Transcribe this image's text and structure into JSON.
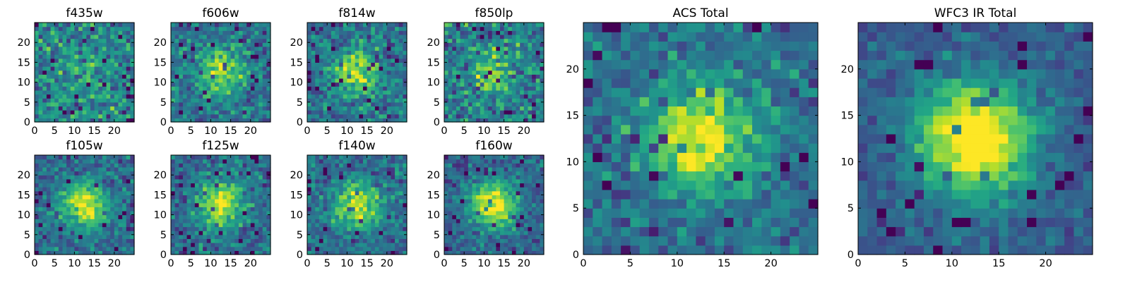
{
  "figure": {
    "description_colormap": "viridis"
  },
  "chart_data": [
    {
      "type": "heatmap",
      "title": "f435w",
      "xlim": [
        0,
        25
      ],
      "ylim": [
        0,
        25
      ],
      "xticks": [
        0,
        5,
        10,
        15,
        20
      ],
      "yticks": [
        0,
        5,
        10,
        15,
        20
      ],
      "grid_size": 25,
      "source_center": [
        12,
        12
      ],
      "signal_strength": 0.15,
      "noise_level": 0.55
    },
    {
      "type": "heatmap",
      "title": "f606w",
      "xlim": [
        0,
        25
      ],
      "ylim": [
        0,
        25
      ],
      "xticks": [
        0,
        5,
        10,
        15,
        20
      ],
      "yticks": [
        0,
        5,
        10,
        15,
        20
      ],
      "grid_size": 25,
      "source_center": [
        12,
        12
      ],
      "signal_strength": 0.45,
      "noise_level": 0.45
    },
    {
      "type": "heatmap",
      "title": "f814w",
      "xlim": [
        0,
        25
      ],
      "ylim": [
        0,
        25
      ],
      "xticks": [
        0,
        5,
        10,
        15,
        20
      ],
      "yticks": [
        0,
        5,
        10,
        15,
        20
      ],
      "grid_size": 25,
      "source_center": [
        12,
        12
      ],
      "signal_strength": 0.5,
      "noise_level": 0.45
    },
    {
      "type": "heatmap",
      "title": "f850lp",
      "xlim": [
        0,
        25
      ],
      "ylim": [
        0,
        25
      ],
      "xticks": [
        0,
        5,
        10,
        15,
        20
      ],
      "yticks": [
        0,
        5,
        10,
        15,
        20
      ],
      "grid_size": 25,
      "source_center": [
        12,
        12
      ],
      "signal_strength": 0.35,
      "noise_level": 0.55
    },
    {
      "type": "heatmap",
      "title": "f105w",
      "xlim": [
        0,
        25
      ],
      "ylim": [
        0,
        25
      ],
      "xticks": [
        0,
        5,
        10,
        15,
        20
      ],
      "yticks": [
        0,
        5,
        10,
        15,
        20
      ],
      "grid_size": 25,
      "source_center": [
        12,
        12
      ],
      "signal_strength": 0.6,
      "noise_level": 0.4
    },
    {
      "type": "heatmap",
      "title": "f125w",
      "xlim": [
        0,
        25
      ],
      "ylim": [
        0,
        25
      ],
      "xticks": [
        0,
        5,
        10,
        15,
        20
      ],
      "yticks": [
        0,
        5,
        10,
        15,
        20
      ],
      "grid_size": 25,
      "source_center": [
        12,
        12
      ],
      "signal_strength": 0.6,
      "noise_level": 0.4
    },
    {
      "type": "heatmap",
      "title": "f140w",
      "xlim": [
        0,
        25
      ],
      "ylim": [
        0,
        25
      ],
      "xticks": [
        0,
        5,
        10,
        15,
        20
      ],
      "yticks": [
        0,
        5,
        10,
        15,
        20
      ],
      "grid_size": 25,
      "source_center": [
        12,
        12
      ],
      "signal_strength": 0.55,
      "noise_level": 0.4
    },
    {
      "type": "heatmap",
      "title": "f160w",
      "xlim": [
        0,
        25
      ],
      "ylim": [
        0,
        25
      ],
      "xticks": [
        0,
        5,
        10,
        15,
        20
      ],
      "yticks": [
        0,
        5,
        10,
        15,
        20
      ],
      "grid_size": 25,
      "source_center": [
        12,
        12
      ],
      "signal_strength": 0.7,
      "noise_level": 0.35
    },
    {
      "type": "heatmap",
      "title": "ACS Total",
      "xlim": [
        0,
        25
      ],
      "ylim": [
        0,
        25
      ],
      "xticks": [
        0,
        5,
        10,
        15,
        20
      ],
      "yticks": [
        0,
        5,
        10,
        15,
        20
      ],
      "grid_size": 25,
      "source_center": [
        12,
        12
      ],
      "signal_strength": 0.6,
      "noise_level": 0.4
    },
    {
      "type": "heatmap",
      "title": "WFC3 IR Total",
      "xlim": [
        0,
        25
      ],
      "ylim": [
        0,
        25
      ],
      "xticks": [
        0,
        5,
        10,
        15,
        20
      ],
      "yticks": [
        0,
        5,
        10,
        15,
        20
      ],
      "grid_size": 25,
      "source_center": [
        12,
        12
      ],
      "signal_strength": 0.85,
      "noise_level": 0.25
    }
  ]
}
